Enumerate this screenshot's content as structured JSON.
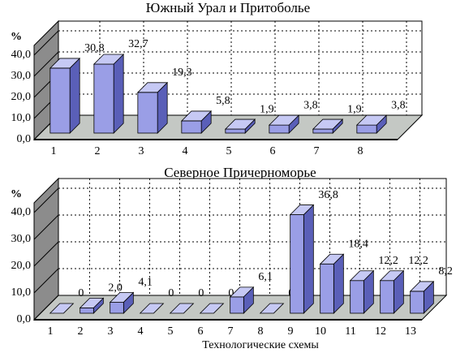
{
  "chart_data": [
    {
      "type": "bar3d",
      "title": "Южный Урал и Притоболье",
      "y_label": "%",
      "categories": [
        "1",
        "2",
        "3",
        "4",
        "5",
        "6",
        "7",
        "8"
      ],
      "values": [
        30.8,
        32.7,
        19.3,
        5.8,
        1.9,
        3.8,
        1.9,
        3.8
      ],
      "value_labels": [
        "30,8",
        "32,7",
        "19,3",
        "5,8",
        "1,9",
        "3,8",
        "1,9",
        "3,8"
      ],
      "color": "#9a9ee6",
      "ylim": [
        0,
        40
      ],
      "yticks": [
        {
          "value": 0,
          "label": "0,0"
        },
        {
          "value": 10,
          "label": "10,0"
        },
        {
          "value": 20,
          "label": "20,0"
        },
        {
          "value": 30,
          "label": "30,0"
        },
        {
          "value": 40,
          "label": "40,0"
        }
      ],
      "grid": true
    },
    {
      "type": "bar3d",
      "title": "Северное Причерноморье",
      "y_label": "%",
      "x_label": "Технологические схемы",
      "categories": [
        "1",
        "2",
        "3",
        "4",
        "5",
        "6",
        "7",
        "8",
        "9",
        "10",
        "11",
        "12",
        "13"
      ],
      "values": [
        0,
        2.0,
        4.1,
        0,
        0,
        0,
        6.1,
        0,
        36.8,
        18.4,
        12.2,
        12.2,
        8.2
      ],
      "value_labels": [
        "0",
        "2,0",
        "4,1",
        "0",
        "0",
        "0",
        "6,1",
        "0",
        "36,8",
        "18,4",
        "12,2",
        "12,2",
        "8,2"
      ],
      "color": "#9a9ee6",
      "ylim": [
        0,
        40
      ],
      "yticks": [
        {
          "value": 0,
          "label": "0,0"
        },
        {
          "value": 10,
          "label": "10,0"
        },
        {
          "value": 20,
          "label": "20,0"
        },
        {
          "value": 30,
          "label": "30,0"
        },
        {
          "value": 40,
          "label": "40,0"
        }
      ],
      "grid": true
    }
  ]
}
